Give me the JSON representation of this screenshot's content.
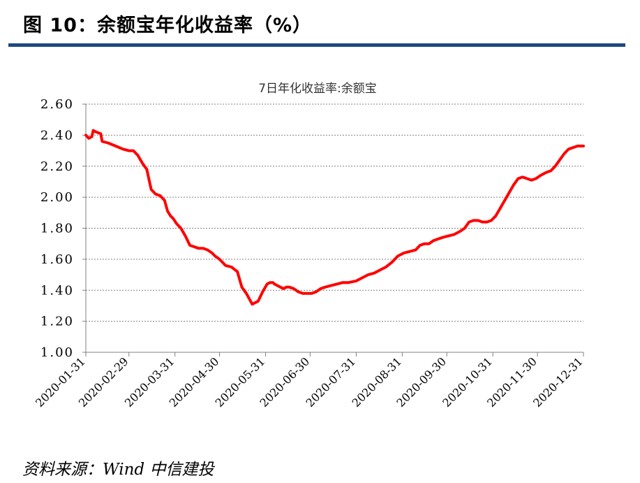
{
  "figure": {
    "title": "图 10：余额宝年化收益率（%）",
    "source": "资料来源：Wind 中信建投"
  },
  "colors": {
    "rule": "#1f497d",
    "line": "#ff0000",
    "grid": "#808080",
    "axis": "#808080"
  },
  "chart_data": {
    "type": "line",
    "title": "7日年化收益率:余额宝",
    "xlabel": "",
    "ylabel": "",
    "ylim": [
      1.0,
      2.6
    ],
    "yticks": [
      "1.00",
      "1.20",
      "1.40",
      "1.60",
      "1.80",
      "2.00",
      "2.20",
      "2.40",
      "2.60"
    ],
    "grid": true,
    "legend": "none",
    "xlim": [
      "2020-01-31",
      "2020-12-31"
    ],
    "xticks": [
      "2020-01-31",
      "2020-02-29",
      "2020-03-31",
      "2020-04-30",
      "2020-05-31",
      "2020-06-30",
      "2020-07-31",
      "2020-08-31",
      "2020-09-30",
      "2020-10-31",
      "2020-11-30",
      "2020-12-31"
    ],
    "series": [
      {
        "name": "",
        "x": [
          "2020-01-31",
          "2020-02-02",
          "2020-02-04",
          "2020-02-05",
          "2020-02-07",
          "2020-02-10",
          "2020-02-11",
          "2020-02-15",
          "2020-02-20",
          "2020-02-25",
          "2020-02-29",
          "2020-03-03",
          "2020-03-06",
          "2020-03-09",
          "2020-03-12",
          "2020-03-15",
          "2020-03-18",
          "2020-03-21",
          "2020-03-24",
          "2020-03-26",
          "2020-03-28",
          "2020-03-30",
          "2020-04-01",
          "2020-04-04",
          "2020-04-07",
          "2020-04-10",
          "2020-04-13",
          "2020-04-16",
          "2020-04-19",
          "2020-04-22",
          "2020-04-25",
          "2020-04-27",
          "2020-04-30",
          "2020-05-02",
          "2020-05-04",
          "2020-05-08",
          "2020-05-12",
          "2020-05-15",
          "2020-05-18",
          "2020-05-22",
          "2020-05-26",
          "2020-05-29",
          "2020-06-01",
          "2020-06-03",
          "2020-06-05",
          "2020-06-06",
          "2020-06-08",
          "2020-06-10",
          "2020-06-12",
          "2020-06-14",
          "2020-06-16",
          "2020-06-19",
          "2020-06-22",
          "2020-06-25",
          "2020-06-28",
          "2020-07-01",
          "2020-07-04",
          "2020-07-07",
          "2020-07-10",
          "2020-07-14",
          "2020-07-18",
          "2020-07-22",
          "2020-07-26",
          "2020-07-31",
          "2020-08-04",
          "2020-08-08",
          "2020-08-12",
          "2020-08-16",
          "2020-08-20",
          "2020-08-24",
          "2020-08-28",
          "2020-09-01",
          "2020-09-05",
          "2020-09-09",
          "2020-09-12",
          "2020-09-15",
          "2020-09-18",
          "2020-09-21",
          "2020-09-24",
          "2020-09-27",
          "2020-10-01",
          "2020-10-05",
          "2020-10-09",
          "2020-10-12",
          "2020-10-15",
          "2020-10-18",
          "2020-10-21",
          "2020-10-24",
          "2020-10-27",
          "2020-10-30",
          "2020-11-02",
          "2020-11-05",
          "2020-11-08",
          "2020-11-11",
          "2020-11-14",
          "2020-11-17",
          "2020-11-20",
          "2020-11-23",
          "2020-11-26",
          "2020-11-29",
          "2020-12-02",
          "2020-12-04",
          "2020-12-06",
          "2020-12-09",
          "2020-12-12",
          "2020-12-15",
          "2020-12-18",
          "2020-12-21",
          "2020-12-24",
          "2020-12-27",
          "2020-12-29",
          "2020-12-31"
        ],
        "values": [
          2.4,
          2.38,
          2.39,
          2.43,
          2.42,
          2.41,
          2.36,
          2.35,
          2.33,
          2.31,
          2.3,
          2.3,
          2.27,
          2.22,
          2.18,
          2.05,
          2.02,
          2.01,
          1.98,
          1.91,
          1.88,
          1.86,
          1.83,
          1.8,
          1.75,
          1.69,
          1.68,
          1.67,
          1.67,
          1.66,
          1.64,
          1.62,
          1.6,
          1.58,
          1.56,
          1.55,
          1.52,
          1.42,
          1.38,
          1.31,
          1.33,
          1.39,
          1.44,
          1.45,
          1.45,
          1.44,
          1.43,
          1.42,
          1.41,
          1.42,
          1.42,
          1.41,
          1.39,
          1.38,
          1.38,
          1.38,
          1.39,
          1.41,
          1.42,
          1.43,
          1.44,
          1.45,
          1.45,
          1.46,
          1.48,
          1.5,
          1.51,
          1.53,
          1.55,
          1.58,
          1.62,
          1.64,
          1.65,
          1.66,
          1.69,
          1.7,
          1.7,
          1.72,
          1.73,
          1.74,
          1.75,
          1.76,
          1.78,
          1.8,
          1.84,
          1.85,
          1.85,
          1.84,
          1.84,
          1.85,
          1.88,
          1.93,
          1.98,
          2.03,
          2.08,
          2.12,
          2.13,
          2.12,
          2.11,
          2.12,
          2.14,
          2.15,
          2.16,
          2.17,
          2.2,
          2.24,
          2.28,
          2.31,
          2.32,
          2.33,
          2.33,
          2.33
        ]
      }
    ]
  }
}
